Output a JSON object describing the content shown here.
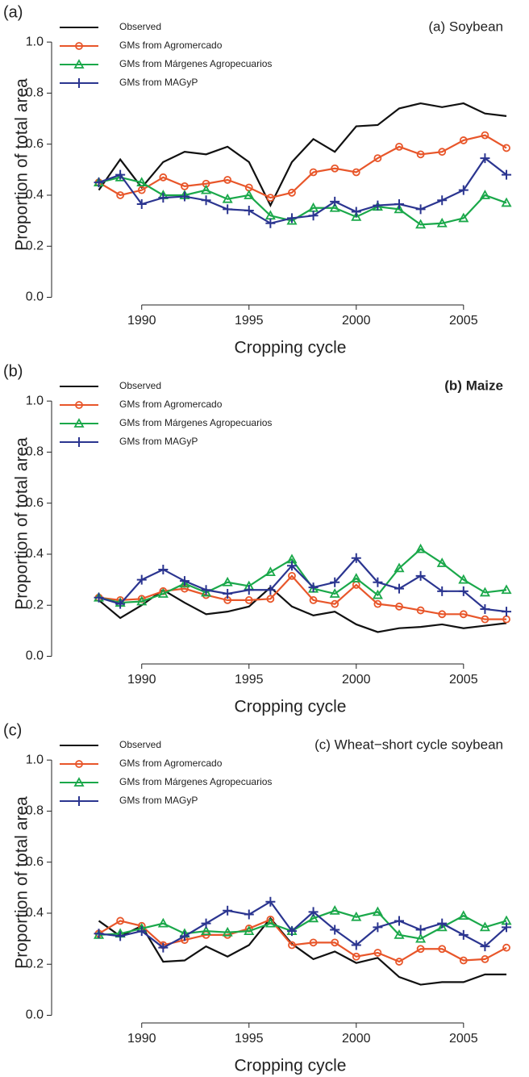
{
  "chart_data": [
    {
      "type": "line",
      "panel_label": "(a)",
      "title": "(a) Soybean",
      "title_weight": "normal",
      "xlabel": "Cropping cycle",
      "ylabel": "Proportion of total area",
      "x": [
        1988,
        1989,
        1990,
        1991,
        1992,
        1993,
        1994,
        1995,
        1996,
        1997,
        1998,
        1999,
        2000,
        2001,
        2002,
        2003,
        2004,
        2005,
        2006,
        2007
      ],
      "xlim": [
        1985.8,
        2007.3
      ],
      "xticks": [
        1990,
        1995,
        2000,
        2005
      ],
      "ylim": [
        -0.03,
        1.07
      ],
      "yticks": [
        {
          "value": 0,
          "label": "0.0"
        },
        0.2,
        0.4,
        0.6,
        0.8,
        {
          "value": 1,
          "label": "1.0"
        }
      ],
      "legend": "top-left",
      "series": [
        {
          "name": "Observed",
          "color": "#111111",
          "marker": "none",
          "values": [
            0.42,
            0.54,
            0.43,
            0.53,
            0.57,
            0.56,
            0.59,
            0.53,
            0.36,
            0.53,
            0.62,
            0.57,
            0.67,
            0.675,
            0.74,
            0.76,
            0.745,
            0.76,
            0.72,
            0.71
          ]
        },
        {
          "name": "GMs from Agromercado",
          "color": "#e8562a",
          "marker": "circle",
          "values": [
            0.45,
            0.4,
            0.42,
            0.47,
            0.435,
            0.445,
            0.46,
            0.43,
            0.39,
            0.41,
            0.49,
            0.505,
            0.49,
            0.545,
            0.59,
            0.56,
            0.57,
            0.615,
            0.635,
            0.585
          ]
        },
        {
          "name": "GMs from Márgenes Agropecuarios",
          "color": "#1aa84a",
          "marker": "triangle",
          "values": [
            0.45,
            0.47,
            0.45,
            0.4,
            0.4,
            0.42,
            0.385,
            0.4,
            0.32,
            0.3,
            0.35,
            0.35,
            0.315,
            0.355,
            0.345,
            0.285,
            0.29,
            0.31,
            0.4,
            0.37
          ]
        },
        {
          "name": "GMs from MAGyP",
          "color": "#2b3590",
          "marker": "plus",
          "values": [
            0.45,
            0.48,
            0.365,
            0.39,
            0.395,
            0.38,
            0.345,
            0.34,
            0.29,
            0.31,
            0.32,
            0.375,
            0.335,
            0.36,
            0.365,
            0.345,
            0.38,
            0.42,
            0.545,
            0.48
          ]
        }
      ]
    },
    {
      "type": "line",
      "panel_label": "(b)",
      "title": "(b) Maize",
      "title_weight": "bold",
      "xlabel": "Cropping cycle",
      "ylabel": "Proportion of total area",
      "x": [
        1988,
        1989,
        1990,
        1991,
        1992,
        1993,
        1994,
        1995,
        1996,
        1997,
        1998,
        1999,
        2000,
        2001,
        2002,
        2003,
        2004,
        2005,
        2006,
        2007
      ],
      "xlim": [
        1985.8,
        2007.3
      ],
      "xticks": [
        1990,
        1995,
        2000,
        2005
      ],
      "ylim": [
        -0.03,
        1.07
      ],
      "yticks": [
        {
          "value": 0,
          "label": "0.0"
        },
        0.2,
        0.4,
        0.6,
        0.8,
        {
          "value": 1,
          "label": "1.0"
        }
      ],
      "legend": "top-left",
      "series": [
        {
          "name": "Observed",
          "color": "#111111",
          "marker": "none",
          "values": [
            0.22,
            0.15,
            0.2,
            0.26,
            0.21,
            0.165,
            0.175,
            0.195,
            0.27,
            0.195,
            0.16,
            0.175,
            0.125,
            0.095,
            0.11,
            0.115,
            0.125,
            0.11,
            0.12,
            0.13
          ]
        },
        {
          "name": "GMs from Agromercado",
          "color": "#e8562a",
          "marker": "circle",
          "values": [
            0.23,
            0.22,
            0.225,
            0.255,
            0.265,
            0.24,
            0.22,
            0.22,
            0.225,
            0.315,
            0.22,
            0.205,
            0.28,
            0.205,
            0.195,
            0.18,
            0.165,
            0.165,
            0.145,
            0.145
          ]
        },
        {
          "name": "GMs from Márgenes Agropecuarios",
          "color": "#1aa84a",
          "marker": "triangle",
          "values": [
            0.23,
            0.21,
            0.215,
            0.245,
            0.285,
            0.25,
            0.29,
            0.275,
            0.33,
            0.38,
            0.265,
            0.245,
            0.305,
            0.24,
            0.345,
            0.42,
            0.365,
            0.3,
            0.25,
            0.26
          ]
        },
        {
          "name": "GMs from MAGyP",
          "color": "#2b3590",
          "marker": "plus",
          "values": [
            0.23,
            0.205,
            0.3,
            0.34,
            0.295,
            0.26,
            0.245,
            0.26,
            0.26,
            0.355,
            0.27,
            0.29,
            0.385,
            0.29,
            0.265,
            0.315,
            0.255,
            0.255,
            0.185,
            0.175
          ]
        }
      ]
    },
    {
      "type": "line",
      "panel_label": "(c)",
      "title": "(c) Wheat−short cycle soybean",
      "title_weight": "normal",
      "xlabel": "Cropping cycle",
      "ylabel": "Proportion of total area",
      "x": [
        1988,
        1989,
        1990,
        1991,
        1992,
        1993,
        1994,
        1995,
        1996,
        1997,
        1998,
        1999,
        2000,
        2001,
        2002,
        2003,
        2004,
        2005,
        2006,
        2007
      ],
      "xlim": [
        1985.8,
        2007.3
      ],
      "xticks": [
        1990,
        1995,
        2000,
        2005
      ],
      "ylim": [
        -0.03,
        1.07
      ],
      "yticks": [
        {
          "value": 0,
          "label": "0.0"
        },
        0.2,
        0.4,
        0.6,
        0.8,
        {
          "value": 1,
          "label": "1.0"
        }
      ],
      "legend": "top-left",
      "series": [
        {
          "name": "Observed",
          "color": "#111111",
          "marker": "none",
          "values": [
            0.37,
            0.31,
            0.35,
            0.21,
            0.215,
            0.27,
            0.23,
            0.275,
            0.38,
            0.28,
            0.22,
            0.25,
            0.205,
            0.225,
            0.15,
            0.12,
            0.13,
            0.13,
            0.16,
            0.16
          ]
        },
        {
          "name": "GMs from Agromercado",
          "color": "#e8562a",
          "marker": "circle",
          "values": [
            0.32,
            0.37,
            0.35,
            0.275,
            0.295,
            0.315,
            0.315,
            0.34,
            0.375,
            0.275,
            0.285,
            0.285,
            0.23,
            0.245,
            0.21,
            0.26,
            0.26,
            0.215,
            0.22,
            0.265
          ]
        },
        {
          "name": "GMs from Márgenes Agropecuarios",
          "color": "#1aa84a",
          "marker": "triangle",
          "values": [
            0.315,
            0.32,
            0.34,
            0.36,
            0.32,
            0.33,
            0.325,
            0.33,
            0.36,
            0.33,
            0.38,
            0.41,
            0.385,
            0.405,
            0.315,
            0.3,
            0.345,
            0.39,
            0.345,
            0.37
          ]
        },
        {
          "name": "GMs from MAGyP",
          "color": "#2b3590",
          "marker": "plus",
          "values": [
            0.32,
            0.31,
            0.33,
            0.265,
            0.31,
            0.36,
            0.41,
            0.395,
            0.445,
            0.33,
            0.405,
            0.335,
            0.275,
            0.345,
            0.37,
            0.335,
            0.36,
            0.315,
            0.27,
            0.345
          ]
        }
      ]
    }
  ]
}
